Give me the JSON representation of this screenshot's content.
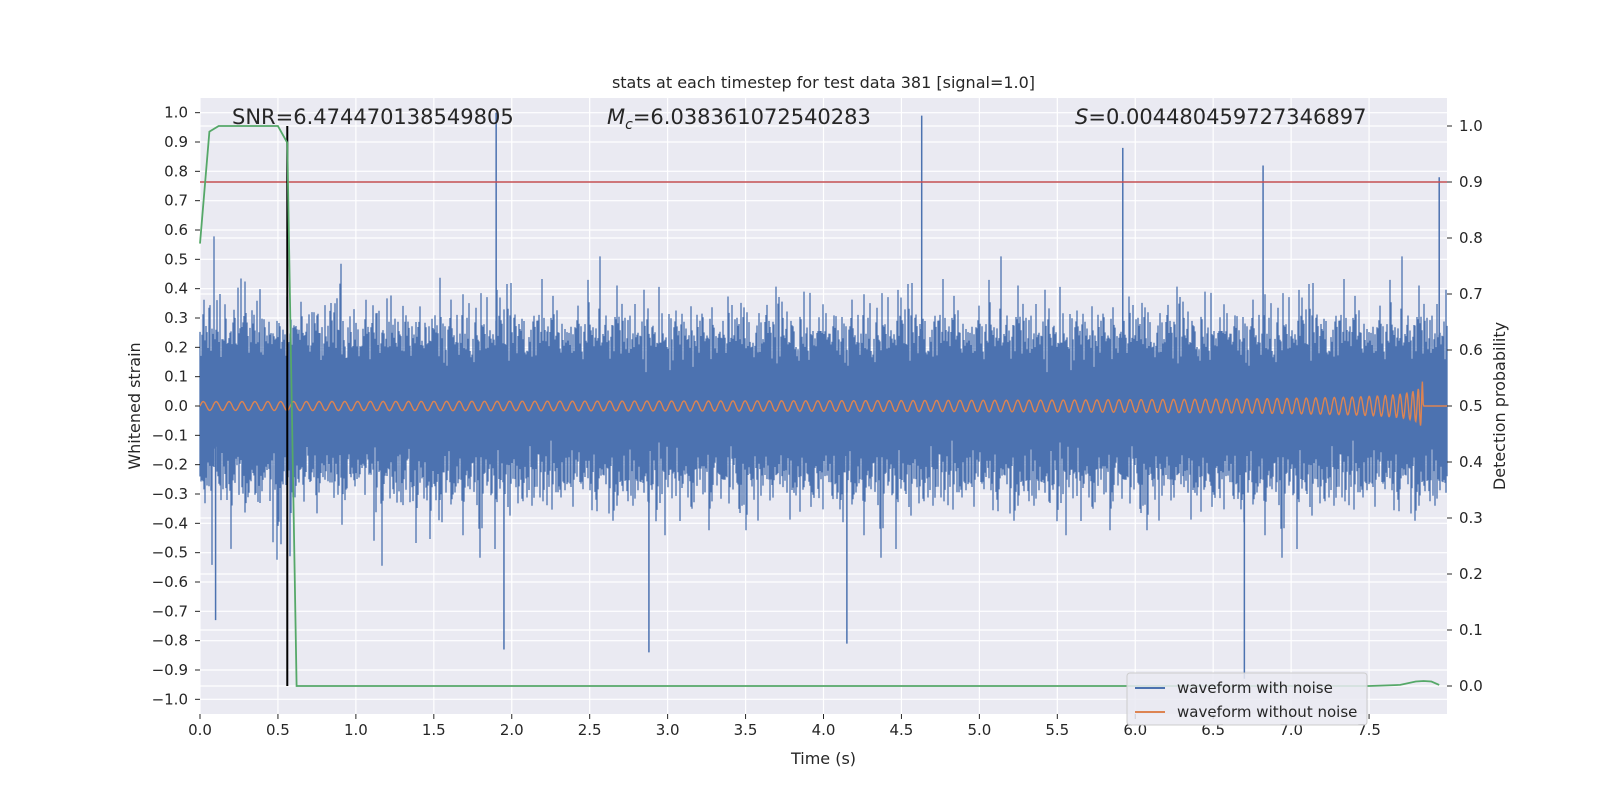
{
  "chart_data": {
    "type": "line",
    "title": "stats at each timestep for test data 381 [signal=1.0]",
    "xlabel": "Time (s)",
    "ylabel": "Whitened strain",
    "y2label": "Detection probability",
    "xlim": [
      0.0,
      8.0
    ],
    "ylim": [
      -1.05,
      1.05
    ],
    "y2lim": [
      -0.05,
      1.05
    ],
    "x_ticks": [
      "0.0",
      "0.5",
      "1.0",
      "1.5",
      "2.0",
      "2.5",
      "3.0",
      "3.5",
      "4.0",
      "4.5",
      "5.0",
      "5.5",
      "6.0",
      "6.5",
      "7.0",
      "7.5"
    ],
    "y_ticks": [
      "1.0",
      "0.9",
      "0.8",
      "0.7",
      "0.6",
      "0.5",
      "0.4",
      "0.3",
      "0.2",
      "0.1",
      "0.0",
      "−0.1",
      "−0.2",
      "−0.3",
      "−0.4",
      "−0.5",
      "−0.6",
      "−0.7",
      "−0.8",
      "−0.9",
      "−1.0"
    ],
    "y2_ticks": [
      "1.0",
      "0.9",
      "0.8",
      "0.7",
      "0.6",
      "0.5",
      "0.4",
      "0.3",
      "0.2",
      "0.1",
      "0.0"
    ],
    "annotations": {
      "snr": "SNR=6.474470138549805",
      "mc_symbol": "M",
      "mc_sub": "c",
      "mc_value": "=6.038361072540283",
      "s_symbol": "S",
      "s_value": "=0.004480459727346897"
    },
    "series": [
      {
        "name": "waveform with noise",
        "color": "#4c72b0",
        "axis": "left",
        "amplitude_typical": 0.22,
        "peak_max": 1.0,
        "peak_min": -0.9
      },
      {
        "name": "waveform without noise",
        "color": "#dd8452",
        "axis": "left",
        "start_amplitude": 0.015,
        "peak_amplitude": 0.17,
        "merger_time": 7.85
      },
      {
        "name": "detection probability",
        "color": "#55a868",
        "axis": "right",
        "x": [
          0.0,
          0.06,
          0.12,
          0.2,
          0.3,
          0.4,
          0.5,
          0.56,
          0.62,
          1.0,
          2.0,
          3.0,
          4.0,
          5.0,
          6.0,
          7.0,
          7.5,
          7.7,
          7.8,
          7.85,
          7.9,
          7.95
        ],
        "y": [
          0.79,
          0.99,
          1.0,
          1.0,
          1.0,
          1.0,
          1.0,
          0.97,
          0.0,
          0.0,
          0.0,
          0.0,
          0.0,
          0.0,
          0.0,
          0.0,
          0.0,
          0.002,
          0.008,
          0.009,
          0.008,
          0.002
        ]
      }
    ],
    "threshold_line": {
      "axis": "right",
      "value": 0.9,
      "color": "#c44e52"
    },
    "vertical_marker": {
      "x": 0.56,
      "color": "#000000"
    },
    "grid": true,
    "legend": {
      "position": "bottom-right",
      "entries": [
        "waveform with noise",
        "waveform without noise"
      ]
    },
    "background": "#eaeaf2",
    "grid_color": "#ffffff"
  }
}
